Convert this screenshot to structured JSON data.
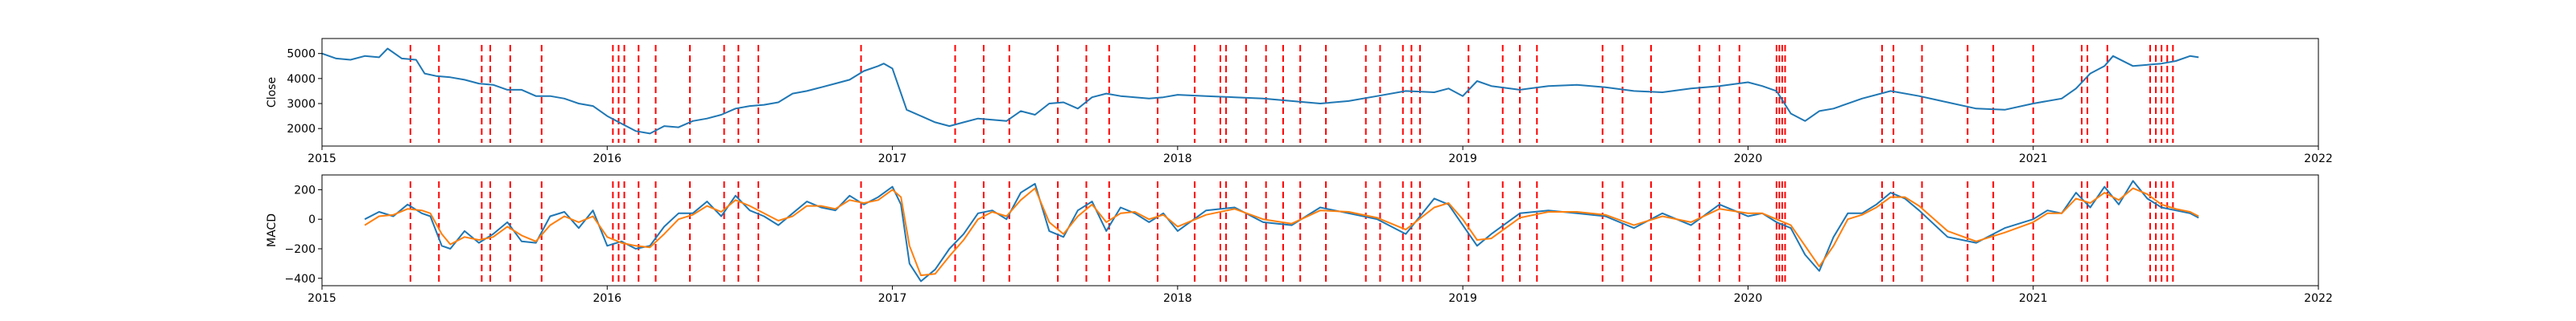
{
  "chart_data": [
    {
      "type": "line",
      "ylabel": "Close",
      "xlabel": "",
      "title": "",
      "xlim": [
        2015.0,
        2022.0
      ],
      "ylim": [
        1300,
        5600
      ],
      "x_ticks": [
        2015,
        2016,
        2017,
        2018,
        2019,
        2020,
        2021,
        2022
      ],
      "x_tick_labels": [
        "2015",
        "2016",
        "2017",
        "2018",
        "2019",
        "2020",
        "2021",
        "2022"
      ],
      "y_ticks": [
        2000,
        3000,
        4000,
        5000
      ],
      "y_tick_labels": [
        "2000",
        "3000",
        "4000",
        "5000"
      ],
      "grid": false,
      "series": [
        {
          "color": "#1f77b4",
          "x": [
            2015.0,
            2015.05,
            2015.1,
            2015.15,
            2015.2,
            2015.23,
            2015.28,
            2015.33,
            2015.36,
            2015.4,
            2015.45,
            2015.5,
            2015.55,
            2015.6,
            2015.65,
            2015.7,
            2015.75,
            2015.8,
            2015.85,
            2015.9,
            2015.95,
            2016.0,
            2016.05,
            2016.1,
            2016.15,
            2016.2,
            2016.25,
            2016.3,
            2016.35,
            2016.4,
            2016.45,
            2016.5,
            2016.55,
            2016.6,
            2016.65,
            2016.7,
            2016.75,
            2016.8,
            2016.85,
            2016.9,
            2016.95,
            2016.97,
            2017.0,
            2017.05,
            2017.1,
            2017.15,
            2017.2,
            2017.25,
            2017.3,
            2017.35,
            2017.4,
            2017.45,
            2017.5,
            2017.55,
            2017.6,
            2017.65,
            2017.7,
            2017.75,
            2017.8,
            2017.85,
            2017.9,
            2017.95,
            2018.0,
            2018.1,
            2018.2,
            2018.3,
            2018.4,
            2018.5,
            2018.6,
            2018.7,
            2018.8,
            2018.9,
            2018.95,
            2019.0,
            2019.05,
            2019.1,
            2019.2,
            2019.3,
            2019.4,
            2019.5,
            2019.6,
            2019.7,
            2019.8,
            2019.9,
            2020.0,
            2020.05,
            2020.1,
            2020.15,
            2020.2,
            2020.25,
            2020.3,
            2020.4,
            2020.5,
            2020.6,
            2020.7,
            2020.8,
            2020.9,
            2021.0,
            2021.1,
            2021.15,
            2021.2,
            2021.25,
            2021.28,
            2021.35,
            2021.45,
            2021.5,
            2021.55,
            2021.58
          ],
          "values": [
            5000,
            4800,
            4750,
            4900,
            4850,
            5200,
            4800,
            4750,
            4200,
            4100,
            4050,
            3950,
            3800,
            3750,
            3550,
            3550,
            3300,
            3300,
            3200,
            3000,
            2900,
            2500,
            2200,
            1900,
            1800,
            2100,
            2050,
            2300,
            2400,
            2550,
            2800,
            2900,
            2950,
            3050,
            3400,
            3500,
            3650,
            3800,
            3950,
            4300,
            4500,
            4600,
            4400,
            2750,
            2500,
            2250,
            2100,
            2250,
            2400,
            2350,
            2300,
            2700,
            2550,
            3000,
            3050,
            2800,
            3250,
            3400,
            3300,
            3250,
            3200,
            3250,
            3350,
            3300,
            3250,
            3200,
            3100,
            3000,
            3100,
            3300,
            3500,
            3450,
            3600,
            3300,
            3900,
            3700,
            3550,
            3700,
            3750,
            3650,
            3500,
            3450,
            3600,
            3700,
            3850,
            3700,
            3500,
            2600,
            2300,
            2700,
            2800,
            3200,
            3500,
            3300,
            3050,
            2800,
            2750,
            3000,
            3200,
            3600,
            4200,
            4500,
            4900,
            4500,
            4600,
            4700,
            4900,
            4850
          ]
        }
      ],
      "events_x": [
        2015.31,
        2015.41,
        2015.56,
        2015.59,
        2015.66,
        2015.77,
        2016.02,
        2016.04,
        2016.06,
        2016.11,
        2016.17,
        2016.29,
        2016.41,
        2016.46,
        2016.53,
        2016.89,
        2017.22,
        2017.32,
        2017.41,
        2017.58,
        2017.68,
        2017.76,
        2017.93,
        2018.06,
        2018.15,
        2018.17,
        2018.24,
        2018.31,
        2018.37,
        2018.43,
        2018.52,
        2018.66,
        2018.71,
        2018.79,
        2018.82,
        2018.85,
        2019.02,
        2019.14,
        2019.2,
        2019.26,
        2019.49,
        2019.56,
        2019.66,
        2019.83,
        2019.9,
        2019.97,
        2020.1,
        2020.11,
        2020.12,
        2020.13,
        2020.47,
        2020.51,
        2020.61,
        2020.77,
        2020.86,
        2021.0,
        2021.17,
        2021.19,
        2021.26,
        2021.41,
        2021.43,
        2021.45,
        2021.47,
        2021.49
      ]
    },
    {
      "type": "line",
      "ylabel": "MACD",
      "xlabel": "",
      "title": "",
      "xlim": [
        2015.0,
        2022.0
      ],
      "ylim": [
        -450,
        300
      ],
      "x_ticks": [
        2015,
        2016,
        2017,
        2018,
        2019,
        2020,
        2021,
        2022
      ],
      "x_tick_labels": [
        "2015",
        "2016",
        "2017",
        "2018",
        "2019",
        "2020",
        "2021",
        "2022"
      ],
      "y_ticks": [
        -400,
        -200,
        0,
        200
      ],
      "y_tick_labels": [
        "−400",
        "−200",
        "0",
        "200"
      ],
      "grid": false,
      "series": [
        {
          "color": "#1f77b4",
          "x": [
            2015.15,
            2015.2,
            2015.25,
            2015.3,
            2015.35,
            2015.38,
            2015.42,
            2015.45,
            2015.5,
            2015.55,
            2015.6,
            2015.65,
            2015.7,
            2015.75,
            2015.8,
            2015.85,
            2015.9,
            2015.95,
            2016.0,
            2016.05,
            2016.1,
            2016.15,
            2016.2,
            2016.25,
            2016.3,
            2016.35,
            2016.4,
            2016.45,
            2016.5,
            2016.55,
            2016.6,
            2016.65,
            2016.7,
            2016.75,
            2016.8,
            2016.85,
            2016.9,
            2016.95,
            2017.0,
            2017.03,
            2017.06,
            2017.1,
            2017.15,
            2017.2,
            2017.25,
            2017.3,
            2017.35,
            2017.4,
            2017.45,
            2017.5,
            2017.55,
            2017.6,
            2017.65,
            2017.7,
            2017.75,
            2017.8,
            2017.85,
            2017.9,
            2017.95,
            2018.0,
            2018.1,
            2018.2,
            2018.3,
            2018.4,
            2018.5,
            2018.6,
            2018.7,
            2018.8,
            2018.9,
            2018.95,
            2019.0,
            2019.05,
            2019.1,
            2019.2,
            2019.3,
            2019.4,
            2019.5,
            2019.6,
            2019.7,
            2019.8,
            2019.9,
            2020.0,
            2020.05,
            2020.1,
            2020.15,
            2020.2,
            2020.25,
            2020.3,
            2020.35,
            2020.4,
            2020.45,
            2020.5,
            2020.55,
            2020.6,
            2020.7,
            2020.8,
            2020.9,
            2021.0,
            2021.05,
            2021.1,
            2021.15,
            2021.2,
            2021.25,
            2021.3,
            2021.35,
            2021.4,
            2021.45,
            2021.5,
            2021.55,
            2021.58
          ],
          "values": [
            0,
            50,
            20,
            100,
            40,
            20,
            -180,
            -200,
            -80,
            -160,
            -100,
            -20,
            -150,
            -160,
            20,
            50,
            -60,
            60,
            -180,
            -150,
            -200,
            -180,
            -50,
            40,
            40,
            120,
            20,
            160,
            60,
            20,
            -40,
            40,
            120,
            80,
            60,
            160,
            100,
            150,
            220,
            100,
            -300,
            -420,
            -340,
            -200,
            -100,
            40,
            60,
            0,
            180,
            240,
            -80,
            -120,
            60,
            120,
            -80,
            80,
            40,
            -20,
            40,
            -80,
            60,
            80,
            -20,
            -40,
            80,
            40,
            0,
            -100,
            140,
            100,
            -40,
            -180,
            -100,
            40,
            60,
            40,
            20,
            -60,
            40,
            -40,
            100,
            20,
            40,
            -20,
            -60,
            -240,
            -350,
            -120,
            40,
            40,
            100,
            180,
            140,
            60,
            -120,
            -160,
            -60,
            0,
            60,
            40,
            180,
            80,
            220,
            100,
            260,
            140,
            80,
            60,
            40,
            10
          ]
        },
        {
          "color": "#ff7f0e",
          "x": [
            2015.15,
            2015.2,
            2015.25,
            2015.3,
            2015.35,
            2015.38,
            2015.42,
            2015.45,
            2015.5,
            2015.55,
            2015.6,
            2015.65,
            2015.7,
            2015.75,
            2015.8,
            2015.85,
            2015.9,
            2015.95,
            2016.0,
            2016.05,
            2016.1,
            2016.15,
            2016.2,
            2016.25,
            2016.3,
            2016.35,
            2016.4,
            2016.45,
            2016.5,
            2016.55,
            2016.6,
            2016.65,
            2016.7,
            2016.75,
            2016.8,
            2016.85,
            2016.9,
            2016.95,
            2017.0,
            2017.03,
            2017.06,
            2017.1,
            2017.15,
            2017.2,
            2017.25,
            2017.3,
            2017.35,
            2017.4,
            2017.45,
            2017.5,
            2017.55,
            2017.6,
            2017.65,
            2017.7,
            2017.75,
            2017.8,
            2017.85,
            2017.9,
            2017.95,
            2018.0,
            2018.1,
            2018.2,
            2018.3,
            2018.4,
            2018.5,
            2018.6,
            2018.7,
            2018.8,
            2018.9,
            2018.95,
            2019.0,
            2019.05,
            2019.1,
            2019.2,
            2019.3,
            2019.4,
            2019.5,
            2019.6,
            2019.7,
            2019.8,
            2019.9,
            2020.0,
            2020.05,
            2020.1,
            2020.15,
            2020.2,
            2020.25,
            2020.3,
            2020.35,
            2020.4,
            2020.45,
            2020.5,
            2020.55,
            2020.6,
            2020.7,
            2020.8,
            2020.9,
            2021.0,
            2021.05,
            2021.1,
            2021.15,
            2021.2,
            2021.25,
            2021.3,
            2021.35,
            2021.4,
            2021.45,
            2021.5,
            2021.55,
            2021.58
          ],
          "values": [
            -40,
            20,
            30,
            70,
            60,
            40,
            -100,
            -170,
            -120,
            -140,
            -120,
            -50,
            -110,
            -150,
            -40,
            20,
            -20,
            20,
            -120,
            -160,
            -180,
            -190,
            -100,
            0,
            30,
            90,
            50,
            130,
            90,
            40,
            -10,
            20,
            90,
            90,
            70,
            130,
            110,
            130,
            200,
            150,
            -180,
            -380,
            -370,
            -250,
            -140,
            0,
            50,
            20,
            130,
            210,
            -20,
            -100,
            20,
            100,
            -20,
            40,
            50,
            0,
            30,
            -50,
            30,
            70,
            0,
            -30,
            60,
            50,
            10,
            -70,
            80,
            110,
            0,
            -140,
            -130,
            10,
            50,
            50,
            30,
            -40,
            20,
            -20,
            70,
            40,
            40,
            0,
            -40,
            -180,
            -320,
            -180,
            0,
            30,
            80,
            150,
            150,
            90,
            -80,
            -150,
            -90,
            -20,
            40,
            40,
            140,
            110,
            180,
            130,
            210,
            170,
            100,
            70,
            50,
            20
          ]
        }
      ],
      "events_x": [
        2015.31,
        2015.41,
        2015.56,
        2015.59,
        2015.66,
        2015.77,
        2016.02,
        2016.04,
        2016.06,
        2016.11,
        2016.17,
        2016.29,
        2016.41,
        2016.46,
        2016.53,
        2016.89,
        2017.22,
        2017.32,
        2017.41,
        2017.58,
        2017.68,
        2017.76,
        2017.93,
        2018.06,
        2018.15,
        2018.17,
        2018.24,
        2018.31,
        2018.37,
        2018.43,
        2018.52,
        2018.66,
        2018.71,
        2018.79,
        2018.82,
        2018.85,
        2019.02,
        2019.14,
        2019.2,
        2019.26,
        2019.49,
        2019.56,
        2019.66,
        2019.83,
        2019.9,
        2019.97,
        2020.1,
        2020.11,
        2020.12,
        2020.13,
        2020.47,
        2020.51,
        2020.61,
        2020.77,
        2020.86,
        2021.0,
        2021.17,
        2021.19,
        2021.26,
        2021.41,
        2021.43,
        2021.45,
        2021.47,
        2021.49
      ]
    }
  ],
  "colors": {
    "event_line": "#ff0000",
    "axes": "#000000",
    "background": "#ffffff"
  }
}
